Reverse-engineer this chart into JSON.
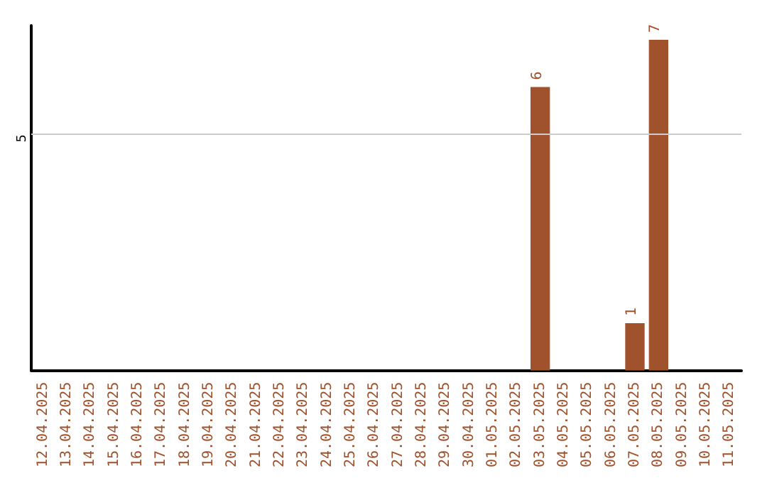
{
  "chart_data": {
    "type": "bar",
    "categories": [
      "12.04.2025",
      "13.04.2025",
      "14.04.2025",
      "15.04.2025",
      "16.04.2025",
      "17.04.2025",
      "18.04.2025",
      "19.04.2025",
      "20.04.2025",
      "21.04.2025",
      "22.04.2025",
      "23.04.2025",
      "24.04.2025",
      "25.04.2025",
      "26.04.2025",
      "27.04.2025",
      "28.04.2025",
      "29.04.2025",
      "30.04.2025",
      "01.05.2025",
      "02.05.2025",
      "03.05.2025",
      "04.05.2025",
      "05.05.2025",
      "06.05.2025",
      "07.05.2025",
      "08.05.2025",
      "09.05.2025",
      "10.05.2025",
      "11.05.2025"
    ],
    "values": [
      null,
      null,
      null,
      null,
      null,
      null,
      null,
      null,
      null,
      null,
      null,
      null,
      null,
      null,
      null,
      null,
      null,
      null,
      null,
      null,
      null,
      6,
      null,
      null,
      null,
      1,
      7,
      null,
      null,
      null
    ],
    "data_labels": true,
    "color": "#a0522d",
    "ylim": [
      0,
      7.3
    ],
    "ref_lines": [
      {
        "axis": "y",
        "value": 5,
        "label": "5",
        "color": "#cccccc"
      }
    ]
  }
}
